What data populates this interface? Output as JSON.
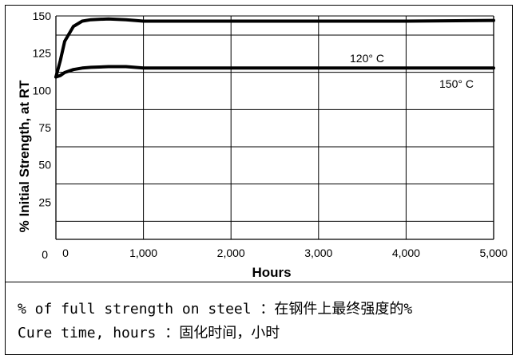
{
  "chart_data": {
    "type": "line",
    "xlabel": "Hours",
    "ylabel": "% Initial Strength, at RT",
    "xlim": [
      0,
      5000
    ],
    "ylim": [
      0,
      150
    ],
    "x_tick_labels": [
      "0",
      "1,000",
      "2,000",
      "3,000",
      "4,000",
      "5,000"
    ],
    "y_tick_labels": [
      "0",
      "25",
      "50",
      "75",
      "100",
      "125",
      "150"
    ],
    "grid": true,
    "series": [
      {
        "name": "120° C",
        "x": [
          0,
          50,
          100,
          200,
          300,
          400,
          600,
          800,
          1000,
          2000,
          3000,
          4000,
          5000
        ],
        "values": [
          109,
          120,
          133,
          143,
          146.5,
          147.5,
          148,
          147.5,
          146.5,
          146.5,
          146.5,
          146.5,
          147
        ]
      },
      {
        "name": "150° C",
        "x": [
          0,
          50,
          100,
          200,
          300,
          400,
          600,
          800,
          1000,
          2000,
          3000,
          4000,
          5000
        ],
        "values": [
          109,
          110,
          112,
          114,
          115,
          115.5,
          116,
          116,
          115,
          115,
          115,
          115,
          115
        ]
      }
    ]
  },
  "legend_text": {
    "line1": "% of full strength on steel ：在钢件上最终强度的%",
    "line2": "Cure time, hours ：固化时间，小时"
  }
}
